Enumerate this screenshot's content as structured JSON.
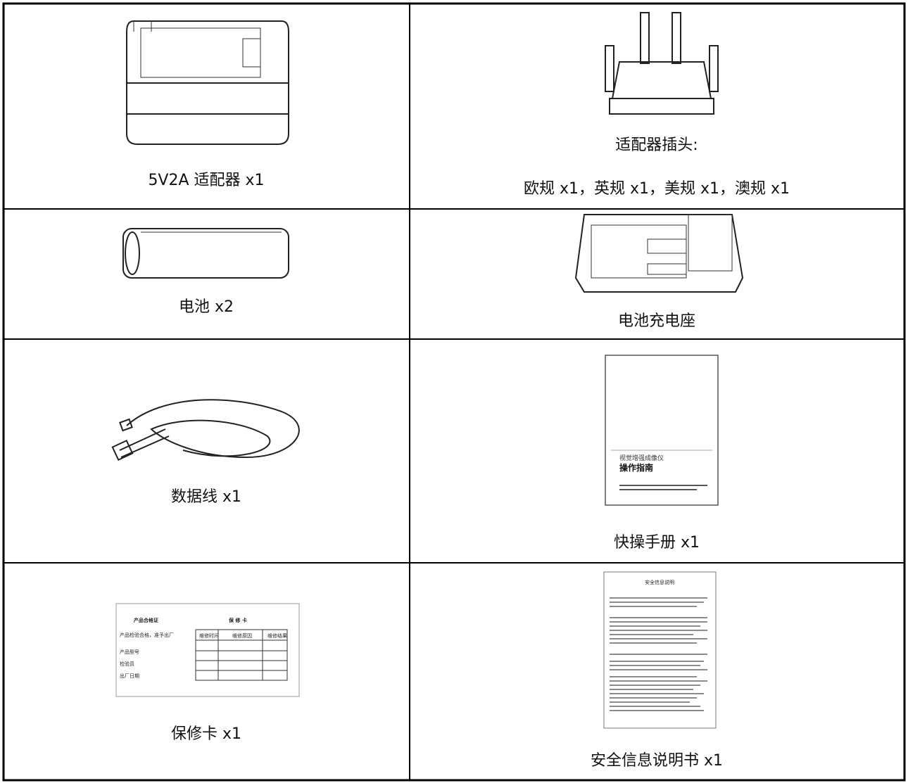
{
  "items": [
    {
      "caption": "5V2A 适配器 x1"
    },
    {
      "caption": "适配器插头:",
      "detail": "欧规 x1，英规 x1，美规 x1，澳规 x1"
    },
    {
      "caption": "电池 x2"
    },
    {
      "caption": "电池充电座"
    },
    {
      "caption": "数据线 x1"
    },
    {
      "caption": "快操手册 x1"
    },
    {
      "caption": "保修卡 x1"
    },
    {
      "caption": "安全信息说明书 x1"
    }
  ],
  "manual_cover": {
    "subtitle": "视觉增强成像仪",
    "title": "操作指南"
  },
  "warranty_card": {
    "left_title": "产品合格证",
    "right_title": "保 修 卡",
    "note": "产品检验合格，准予出厂",
    "fields": [
      "产品型号",
      "检验员",
      "出厂日期"
    ],
    "columns": [
      "维修时间",
      "维修原因",
      "维修结果"
    ]
  },
  "safety_sheet": {
    "title": "安全信息说明"
  }
}
